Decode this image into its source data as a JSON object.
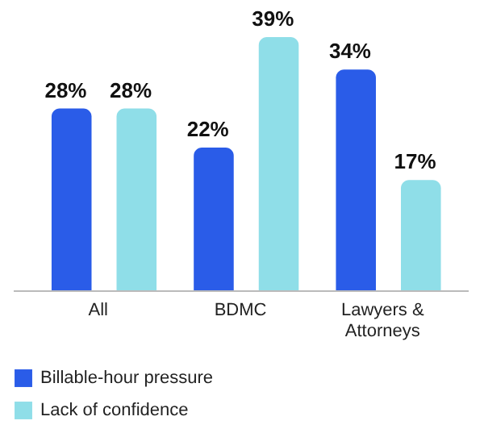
{
  "chart_data": {
    "type": "bar",
    "categories": [
      "All",
      "BDMC",
      "Lawyers & Attorneys"
    ],
    "series": [
      {
        "name": "Billable-hour pressure",
        "color": "#2a5ce8",
        "values": [
          28,
          22,
          34
        ],
        "value_labels": [
          "28%",
          "22%",
          "34%"
        ]
      },
      {
        "name": "Lack of confidence",
        "color": "#8fdee8",
        "values": [
          28,
          39,
          17
        ],
        "value_labels": [
          "28%",
          "39%",
          "17%"
        ]
      }
    ],
    "tick_labels": "x",
    "legend": "bottom left"
  }
}
